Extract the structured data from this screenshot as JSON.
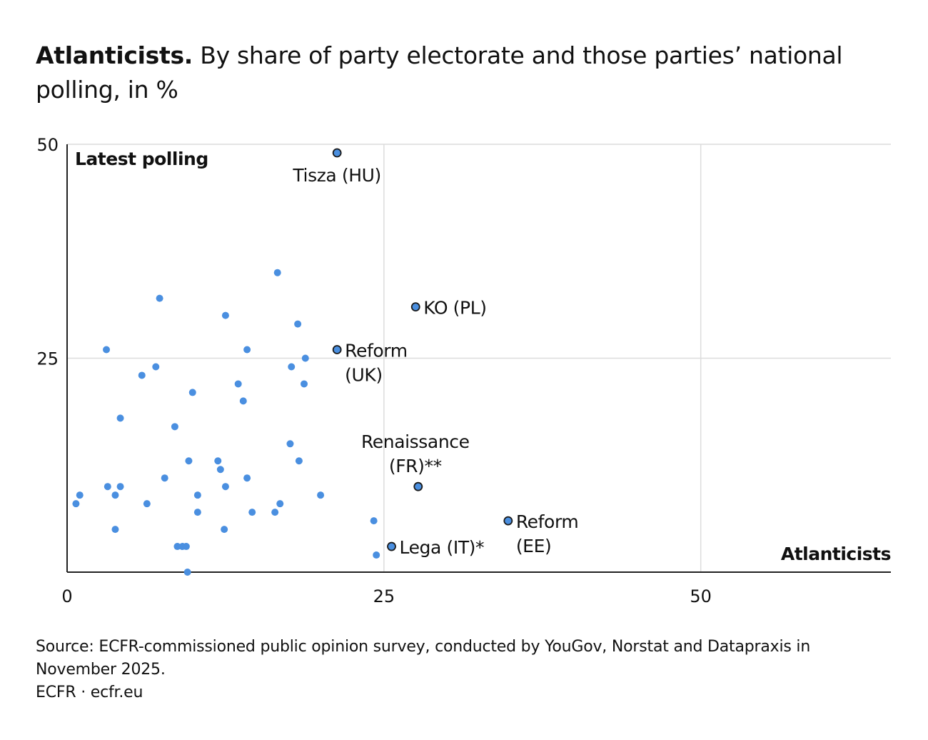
{
  "title_bold": "Atlanticists.",
  "title_rest": "By share of party electorate and those parties’ national polling, in %",
  "source": "Source: ECFR-commissioned public opinion survey, conducted by YouGov, Norstat and Datapraxis in November 2025.",
  "credit": "ECFR · ecfr.eu",
  "colors": {
    "point": "#4a8fe0",
    "grid": "#dcdcdc",
    "axis": "#222222",
    "highlight_stroke": "#1a1a1a"
  },
  "chart_data": {
    "type": "scatter",
    "xlabel": "Atlanticists",
    "ylabel": "Latest polling",
    "xlim": [
      0,
      65
    ],
    "ylim": [
      0,
      50
    ],
    "xticks": [
      0,
      25,
      50
    ],
    "yticks": [
      25,
      50
    ],
    "grid": true,
    "labeled_points": [
      {
        "label": "Tisza (HU)",
        "x": 21.3,
        "y": 49,
        "label_pos": "below"
      },
      {
        "label": "KO (PL)",
        "x": 27.5,
        "y": 31,
        "label_pos": "right"
      },
      {
        "label": "Reform (UK)",
        "x": 21.3,
        "y": 26,
        "label_pos": "right"
      },
      {
        "label": "Renaissance (FR)**",
        "x": 27.7,
        "y": 10,
        "label_pos": "above"
      },
      {
        "label": "Reform (EE)",
        "x": 34.8,
        "y": 6,
        "label_pos": "right"
      },
      {
        "label": "Lega (IT)*",
        "x": 25.6,
        "y": 3,
        "label_pos": "right"
      }
    ],
    "points": [
      {
        "x": 16.6,
        "y": 35
      },
      {
        "x": 7.3,
        "y": 32
      },
      {
        "x": 12.5,
        "y": 30
      },
      {
        "x": 18.2,
        "y": 29
      },
      {
        "x": 3.1,
        "y": 26
      },
      {
        "x": 14.2,
        "y": 26
      },
      {
        "x": 18.8,
        "y": 25
      },
      {
        "x": 7.0,
        "y": 24
      },
      {
        "x": 17.7,
        "y": 24
      },
      {
        "x": 5.9,
        "y": 23
      },
      {
        "x": 13.5,
        "y": 22
      },
      {
        "x": 18.7,
        "y": 22
      },
      {
        "x": 9.9,
        "y": 21
      },
      {
        "x": 13.9,
        "y": 20
      },
      {
        "x": 4.2,
        "y": 18
      },
      {
        "x": 8.5,
        "y": 17
      },
      {
        "x": 17.6,
        "y": 15
      },
      {
        "x": 9.6,
        "y": 13
      },
      {
        "x": 11.9,
        "y": 13
      },
      {
        "x": 18.3,
        "y": 13
      },
      {
        "x": 12.1,
        "y": 12
      },
      {
        "x": 7.7,
        "y": 11
      },
      {
        "x": 14.2,
        "y": 11
      },
      {
        "x": 3.2,
        "y": 10
      },
      {
        "x": 4.2,
        "y": 10
      },
      {
        "x": 12.5,
        "y": 10
      },
      {
        "x": 1.0,
        "y": 9
      },
      {
        "x": 3.8,
        "y": 9
      },
      {
        "x": 10.3,
        "y": 9
      },
      {
        "x": 20.0,
        "y": 9
      },
      {
        "x": 0.7,
        "y": 8
      },
      {
        "x": 6.3,
        "y": 8
      },
      {
        "x": 16.8,
        "y": 8
      },
      {
        "x": 10.3,
        "y": 7
      },
      {
        "x": 14.6,
        "y": 7
      },
      {
        "x": 16.4,
        "y": 7
      },
      {
        "x": 24.2,
        "y": 6
      },
      {
        "x": 3.8,
        "y": 5
      },
      {
        "x": 12.4,
        "y": 5
      },
      {
        "x": 8.7,
        "y": 3
      },
      {
        "x": 9.1,
        "y": 3
      },
      {
        "x": 9.4,
        "y": 3
      },
      {
        "x": 24.4,
        "y": 2
      },
      {
        "x": 9.5,
        "y": 0
      }
    ]
  }
}
